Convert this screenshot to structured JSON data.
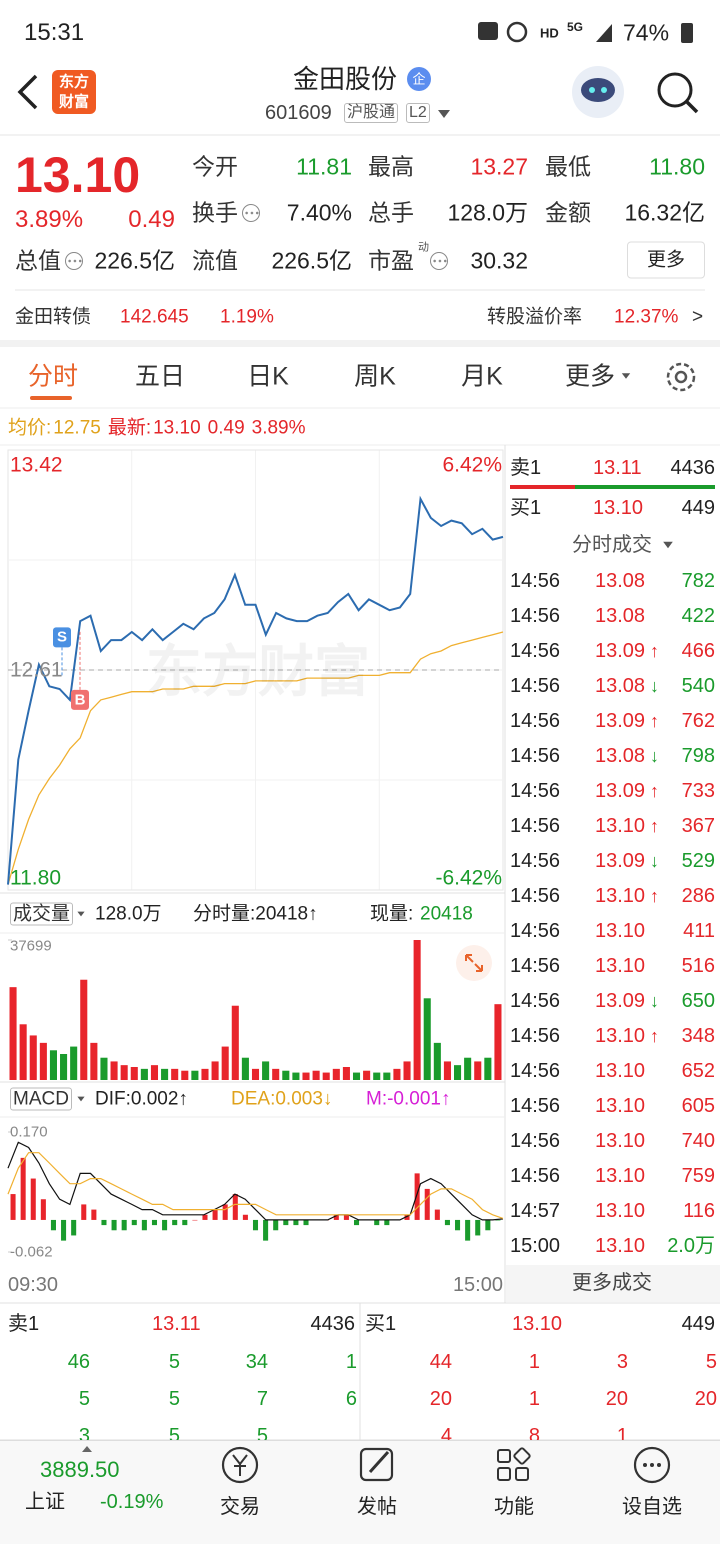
{
  "status_bar": {
    "time": "15:31",
    "hd": "HD",
    "network": "5G",
    "battery": "74%"
  },
  "header": {
    "logo": [
      "东方",
      "财富"
    ],
    "title": "金田股份",
    "badge": "企",
    "code": "601609",
    "connect": "沪股通",
    "level": "L2"
  },
  "quote": {
    "price": "13.10",
    "change_pct": "3.89%",
    "change": "0.49",
    "more": "更多",
    "rows": [
      [
        {
          "label": "今开",
          "value": "11.81",
          "color": "#1a9b2c"
        },
        {
          "label": "最高",
          "value": "13.27",
          "color": "#e4262a"
        },
        {
          "label": "最低",
          "value": "11.80",
          "color": "#1a9b2c"
        }
      ],
      [
        {
          "label": "换手",
          "value": "7.40%",
          "icon": true
        },
        {
          "label": "总手",
          "value": "128.0万"
        },
        {
          "label": "金额",
          "value": "16.32亿"
        }
      ],
      [
        {
          "label": "总值",
          "value": "226.5亿",
          "icon": true
        },
        {
          "label": "流值",
          "value": "226.5亿"
        },
        {
          "label": "市盈",
          "sup": "动",
          "value": "30.32",
          "icon": true
        }
      ]
    ]
  },
  "bond": {
    "name": "金田转债",
    "price": "142.645",
    "change_pct": "1.19%",
    "premium_label": "转股溢价率",
    "premium": "12.37%",
    "arrow": ">"
  },
  "tabs": [
    "分时",
    "五日",
    "日K",
    "周K",
    "月K",
    "更多"
  ],
  "info": {
    "avg_label": "均价:",
    "avg": "12.75",
    "latest_label": "最新:",
    "latest": "13.10",
    "change": "0.49",
    "change_pct": "3.89%"
  },
  "chart_data": [
    {
      "type": "line",
      "watermark": "东方财富",
      "ylim": [
        11.8,
        13.42
      ],
      "yticks": [
        13.42,
        12.61,
        {
          "value": 11.8,
          "label": "11.80"
        }
      ],
      "y2lim": [
        -6.42,
        6.42
      ],
      "y2ticks": [
        {
          "value": 6.42,
          "label": "6.42%"
        },
        {
          "value": -6.42,
          "label": "-6.42%"
        }
      ],
      "series": [
        {
          "color": "#2c6cb0",
          "values": [
            11.82,
            12.28,
            12.46,
            12.63,
            12.55,
            12.54,
            12.5,
            12.79,
            12.81,
            12.68,
            12.72,
            12.72,
            12.75,
            12.72,
            12.76,
            12.72,
            12.75,
            12.78,
            12.76,
            12.8,
            12.82,
            12.87,
            12.96,
            12.85,
            12.85,
            12.74,
            12.82,
            12.8,
            12.79,
            12.79,
            12.81,
            12.82,
            12.86,
            12.89,
            12.83,
            12.87,
            12.85,
            12.83,
            12.84,
            12.89,
            13.24,
            13.17,
            13.14,
            13.16,
            13.15,
            13.11,
            13.13,
            13.09,
            13.1
          ]
        },
        {
          "color": "#f0b030",
          "values": [
            11.82,
            11.95,
            12.06,
            12.15,
            12.21,
            12.26,
            12.32,
            12.36,
            12.46,
            12.5,
            12.51,
            12.52,
            12.53,
            12.53,
            12.53,
            12.54,
            12.54,
            12.54,
            12.55,
            12.55,
            12.55,
            12.56,
            12.56,
            12.56,
            12.57,
            12.57,
            12.57,
            12.57,
            12.57,
            12.58,
            12.58,
            12.58,
            12.58,
            12.58,
            12.59,
            12.59,
            12.59,
            12.6,
            12.6,
            12.6,
            12.65,
            12.67,
            12.68,
            12.7,
            12.71,
            12.72,
            12.73,
            12.74,
            12.75
          ]
        }
      ],
      "markers": [
        {
          "label": "S",
          "value": 12.73,
          "color": "#4a90e2"
        },
        {
          "label": "B",
          "value": 12.5,
          "color": "#f0716f"
        }
      ]
    },
    {
      "type": "bar",
      "title": "成交量",
      "total": "128.0万",
      "minute_volume": "分时量:20418↑",
      "current_label": "现量:",
      "current": "20418",
      "ylim": [
        0,
        37699
      ],
      "yticks": [
        37699
      ],
      "up_color": "#e8242b",
      "down_color": "#1a9b2c",
      "values": [
        25000,
        15000,
        12000,
        10000,
        8000,
        7000,
        9000,
        27000,
        10000,
        6000,
        5000,
        4000,
        3500,
        3000,
        4000,
        3000,
        3000,
        2500,
        2500,
        3000,
        5000,
        9000,
        20000,
        6000,
        3000,
        5000,
        3000,
        2500,
        2000,
        2000,
        2500,
        2000,
        3000,
        3500,
        2000,
        2500,
        2000,
        2000,
        3000,
        5000,
        37699,
        22000,
        10000,
        5000,
        4000,
        6000,
        5000,
        6000,
        20418
      ]
    },
    {
      "type": "macd",
      "title": "MACD",
      "dif_label": "DIF:0.002↑",
      "dea_label": "DEA:0.003↓",
      "m_label": "M:-0.001↑",
      "ylim": [
        -0.062,
        0.17
      ],
      "yticks": [
        {
          "value": 0.17,
          "label": "0.170"
        },
        -0.062
      ],
      "xlabels": [
        "09:30",
        "15:00"
      ],
      "up_color": "#e8242b",
      "down_color": "#1a9b2c",
      "series": [
        {
          "color": "#111111",
          "values": [
            0.1,
            0.15,
            0.14,
            0.11,
            0.07,
            0.04,
            0.03,
            0.09,
            0.09,
            0.07,
            0.05,
            0.04,
            0.03,
            0.02,
            0.02,
            0.01,
            0.01,
            0.01,
            0.01,
            0.01,
            0.02,
            0.03,
            0.05,
            0.04,
            0.02,
            0,
            0,
            0,
            0,
            0,
            0,
            0,
            0.01,
            0.01,
            0,
            0,
            0,
            0,
            0,
            0.01,
            0.07,
            0.08,
            0.07,
            0.05,
            0.03,
            0.01,
            0,
            0,
            0.002
          ]
        },
        {
          "color": "#f0b030",
          "values": [
            0.05,
            0.1,
            0.13,
            0.13,
            0.11,
            0.09,
            0.07,
            0.07,
            0.08,
            0.08,
            0.07,
            0.06,
            0.05,
            0.04,
            0.03,
            0.03,
            0.02,
            0.02,
            0.02,
            0.02,
            0.02,
            0.02,
            0.03,
            0.03,
            0.03,
            0.02,
            0.01,
            0.01,
            0.01,
            0.01,
            0.01,
            0.01,
            0.01,
            0.01,
            0.01,
            0.01,
            0.01,
            0.01,
            0.01,
            0.01,
            0.03,
            0.05,
            0.06,
            0.06,
            0.05,
            0.04,
            0.02,
            0.01,
            0.003
          ]
        }
      ],
      "bars": [
        0.05,
        0.12,
        0.08,
        0.04,
        -0.02,
        -0.04,
        -0.03,
        0.03,
        0.02,
        -0.01,
        -0.02,
        -0.02,
        -0.01,
        -0.02,
        -0.01,
        -0.02,
        -0.01,
        -0.01,
        0,
        0.01,
        0.02,
        0.03,
        0.05,
        0.01,
        -0.02,
        -0.04,
        -0.02,
        -0.01,
        -0.01,
        -0.01,
        0,
        0,
        0.01,
        0.01,
        -0.01,
        0,
        -0.01,
        -0.01,
        0,
        0.01,
        0.09,
        0.06,
        0.02,
        -0.01,
        -0.02,
        -0.04,
        -0.03,
        -0.02,
        -0.001
      ]
    }
  ],
  "quotes_panel": {
    "ask": {
      "label": "卖1",
      "price": "13.11",
      "volume": "4436"
    },
    "bid": {
      "label": "买1",
      "price": "13.10",
      "volume": "449"
    },
    "trades_title": "分时成交",
    "more": "更多成交",
    "trades": [
      {
        "time": "14:56",
        "price": "13.08",
        "volume": "782",
        "color": "#1a9b2c"
      },
      {
        "time": "14:56",
        "price": "13.08",
        "volume": "422",
        "color": "#1a9b2c"
      },
      {
        "time": "14:56",
        "price": "13.09",
        "arrow": "↑",
        "volume": "466",
        "color": "#e4262a"
      },
      {
        "time": "14:56",
        "price": "13.08",
        "arrow": "↓",
        "volume": "540",
        "color": "#1a9b2c"
      },
      {
        "time": "14:56",
        "price": "13.09",
        "arrow": "↑",
        "volume": "762",
        "color": "#e4262a"
      },
      {
        "time": "14:56",
        "price": "13.08",
        "arrow": "↓",
        "volume": "798",
        "color": "#1a9b2c"
      },
      {
        "time": "14:56",
        "price": "13.09",
        "arrow": "↑",
        "volume": "733",
        "color": "#e4262a"
      },
      {
        "time": "14:56",
        "price": "13.10",
        "arrow": "↑",
        "volume": "367",
        "color": "#e4262a"
      },
      {
        "time": "14:56",
        "price": "13.09",
        "arrow": "↓",
        "volume": "529",
        "color": "#1a9b2c"
      },
      {
        "time": "14:56",
        "price": "13.10",
        "arrow": "↑",
        "volume": "286",
        "color": "#e4262a"
      },
      {
        "time": "14:56",
        "price": "13.10",
        "volume": "411",
        "color": "#e4262a"
      },
      {
        "time": "14:56",
        "price": "13.10",
        "volume": "516",
        "color": "#e4262a"
      },
      {
        "time": "14:56",
        "price": "13.09",
        "arrow": "↓",
        "volume": "650",
        "color": "#1a9b2c"
      },
      {
        "time": "14:56",
        "price": "13.10",
        "arrow": "↑",
        "volume": "348",
        "color": "#e4262a"
      },
      {
        "time": "14:56",
        "price": "13.10",
        "volume": "652",
        "color": "#e4262a"
      },
      {
        "time": "14:56",
        "price": "13.10",
        "volume": "605",
        "color": "#e4262a"
      },
      {
        "time": "14:56",
        "price": "13.10",
        "volume": "740",
        "color": "#e4262a"
      },
      {
        "time": "14:56",
        "price": "13.10",
        "volume": "759",
        "color": "#e4262a"
      },
      {
        "time": "14:57",
        "price": "13.10",
        "volume": "116",
        "color": "#e4262a"
      },
      {
        "time": "15:00",
        "price": "13.10",
        "volume": "2.0万",
        "color": "#1a9b2c"
      }
    ]
  },
  "order_book": {
    "sell": {
      "label": "卖1",
      "price": "13.11",
      "volume": "4436",
      "rows": [
        [
          "46",
          "5",
          "34",
          "1"
        ],
        [
          "5",
          "5",
          "7",
          "6"
        ],
        [
          "3",
          "5",
          "5"
        ]
      ]
    },
    "buy": {
      "label": "买1",
      "price": "13.10",
      "volume": "449",
      "rows": [
        [
          "44",
          "1",
          "3",
          "5"
        ],
        [
          "20",
          "1",
          "20",
          "20"
        ],
        [
          "4",
          "8",
          "1"
        ]
      ]
    }
  },
  "bottom_nav": {
    "index": {
      "value": "3889.50",
      "name": "上证",
      "change": "-0.19%"
    },
    "items": [
      "交易",
      "发帖",
      "功能",
      "设自选"
    ]
  }
}
